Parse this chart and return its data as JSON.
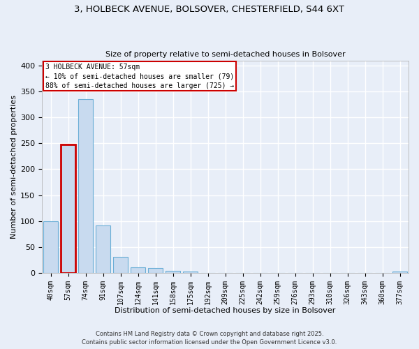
{
  "title_line1": "3, HOLBECK AVENUE, BOLSOVER, CHESTERFIELD, S44 6XT",
  "title_line2": "Size of property relative to semi-detached houses in Bolsover",
  "xlabel": "Distribution of semi-detached houses by size in Bolsover",
  "ylabel": "Number of semi-detached properties",
  "categories": [
    "40sqm",
    "57sqm",
    "74sqm",
    "91sqm",
    "107sqm",
    "124sqm",
    "141sqm",
    "158sqm",
    "175sqm",
    "192sqm",
    "209sqm",
    "225sqm",
    "242sqm",
    "259sqm",
    "276sqm",
    "293sqm",
    "310sqm",
    "326sqm",
    "343sqm",
    "360sqm",
    "377sqm"
  ],
  "values": [
    100,
    248,
    335,
    91,
    31,
    10,
    9,
    4,
    2,
    0,
    0,
    0,
    0,
    0,
    0,
    0,
    0,
    0,
    0,
    0,
    2
  ],
  "highlight_index": 1,
  "bar_color_normal": "#c8daef",
  "bar_color_highlight": "#c8daef",
  "bar_edge_color": "#6aaed6",
  "bar_edge_highlight": "#cc0000",
  "annotation_text": "3 HOLBECK AVENUE: 57sqm\n← 10% of semi-detached houses are smaller (79)\n88% of semi-detached houses are larger (725) →",
  "annotation_box_color": "#ffffff",
  "annotation_border_color": "#cc0000",
  "ylim": [
    0,
    410
  ],
  "yticks": [
    0,
    50,
    100,
    150,
    200,
    250,
    300,
    350,
    400
  ],
  "background_color": "#e8eef8",
  "grid_color": "#ffffff",
  "footer_line1": "Contains HM Land Registry data © Crown copyright and database right 2025.",
  "footer_line2": "Contains public sector information licensed under the Open Government Licence v3.0."
}
